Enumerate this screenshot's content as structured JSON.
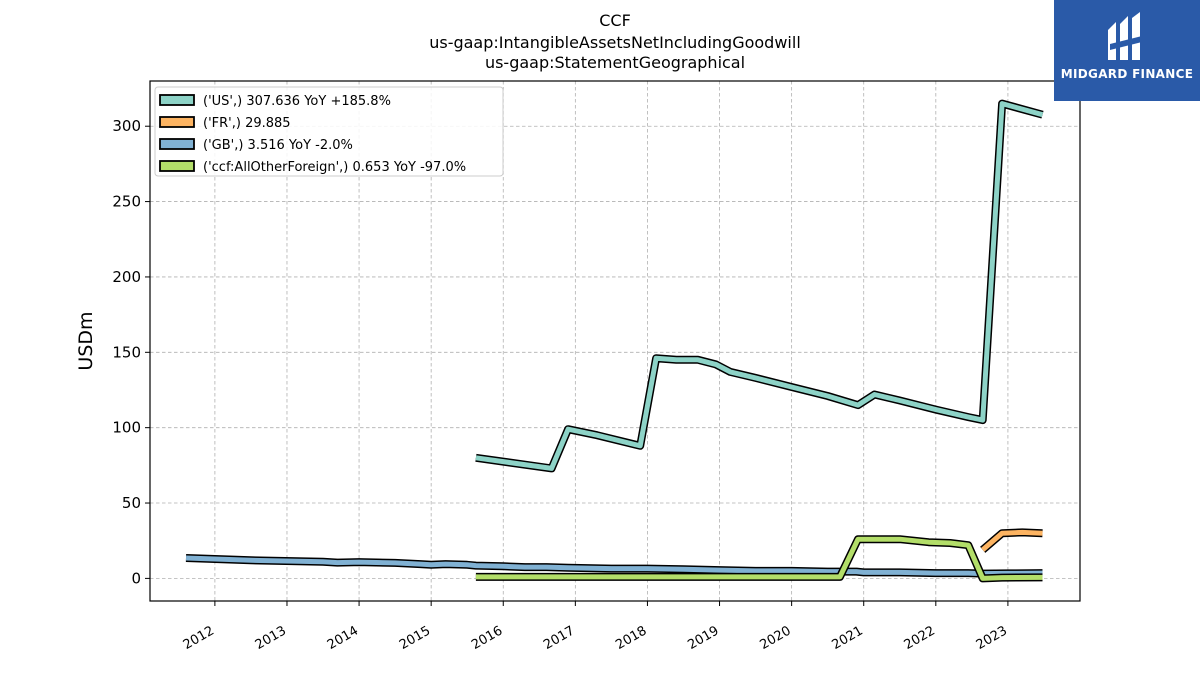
{
  "chart_data": {
    "type": "line",
    "title_lines": [
      "CCF",
      "us-gaap:IntangibleAssetsNetIncludingGoodwill",
      "us-gaap:StatementGeographical"
    ],
    "xlabel": "",
    "ylabel": "USDm",
    "xlim": [
      2011.1,
      2024.0
    ],
    "ylim": [
      -15,
      330
    ],
    "yticks": [
      0,
      50,
      100,
      150,
      200,
      250,
      300
    ],
    "xticks": [
      2012,
      2013,
      2014,
      2015,
      2016,
      2017,
      2018,
      2019,
      2020,
      2021,
      2022,
      2023
    ],
    "grid": true,
    "legend_position": "top-left",
    "series": [
      {
        "name": "('US',) 307.636 YoY +185.8%",
        "color": "#8dd3c7",
        "points": [
          [
            2015.62,
            80
          ],
          [
            2016.67,
            73
          ],
          [
            2016.9,
            99
          ],
          [
            2017.3,
            95
          ],
          [
            2017.9,
            88
          ],
          [
            2018.12,
            146
          ],
          [
            2018.4,
            145
          ],
          [
            2018.7,
            145
          ],
          [
            2018.95,
            142
          ],
          [
            2019.15,
            137
          ],
          [
            2019.5,
            133
          ],
          [
            2020.0,
            127
          ],
          [
            2020.5,
            121
          ],
          [
            2020.92,
            115
          ],
          [
            2021.15,
            122
          ],
          [
            2021.5,
            118
          ],
          [
            2022.0,
            112
          ],
          [
            2022.45,
            107
          ],
          [
            2022.65,
            105
          ],
          [
            2022.92,
            315
          ],
          [
            2023.48,
            307.636
          ]
        ]
      },
      {
        "name": "('FR',) 29.885",
        "color": "#fdb462",
        "points": [
          [
            2022.65,
            19
          ],
          [
            2022.92,
            30
          ],
          [
            2023.2,
            30.5
          ],
          [
            2023.48,
            29.885
          ]
        ]
      },
      {
        "name": "('GB',) 3.516 YoY -2.0%",
        "color": "#80b1d3",
        "points": [
          [
            2011.6,
            13.5
          ],
          [
            2012.5,
            12
          ],
          [
            2013.5,
            11
          ],
          [
            2013.7,
            10.5
          ],
          [
            2014.0,
            10.8
          ],
          [
            2014.5,
            10.3
          ],
          [
            2014.85,
            9.5
          ],
          [
            2015.0,
            9
          ],
          [
            2015.2,
            9.5
          ],
          [
            2015.5,
            9
          ],
          [
            2015.62,
            8.5
          ],
          [
            2016.0,
            8
          ],
          [
            2016.3,
            7.5
          ],
          [
            2016.6,
            7.5
          ],
          [
            2016.9,
            7
          ],
          [
            2017.5,
            6.5
          ],
          [
            2018.0,
            6.5
          ],
          [
            2018.5,
            6
          ],
          [
            2019.0,
            5.5
          ],
          [
            2019.5,
            5
          ],
          [
            2020.0,
            5
          ],
          [
            2020.5,
            4.5
          ],
          [
            2020.9,
            4.5
          ],
          [
            2021.0,
            4
          ],
          [
            2021.5,
            4
          ],
          [
            2022.0,
            3.5
          ],
          [
            2022.45,
            3.5
          ],
          [
            2022.65,
            3.2
          ],
          [
            2023.0,
            3.3
          ],
          [
            2023.48,
            3.516
          ]
        ]
      },
      {
        "name": "('ccf:AllOtherForeign',) 0.653 YoY -97.0%",
        "color": "#b3de69",
        "points": [
          [
            2015.62,
            1
          ],
          [
            2016.5,
            1
          ],
          [
            2017.5,
            1
          ],
          [
            2018.5,
            1
          ],
          [
            2019.5,
            1
          ],
          [
            2020.67,
            1
          ],
          [
            2020.92,
            26
          ],
          [
            2021.5,
            26
          ],
          [
            2021.9,
            24
          ],
          [
            2022.2,
            23.5
          ],
          [
            2022.45,
            22
          ],
          [
            2022.65,
            0
          ],
          [
            2022.92,
            0.5
          ],
          [
            2023.48,
            0.653
          ]
        ]
      }
    ]
  },
  "logo": {
    "brand_text": "MIDGARD FINANCE",
    "background": "#2a5aa8"
  }
}
